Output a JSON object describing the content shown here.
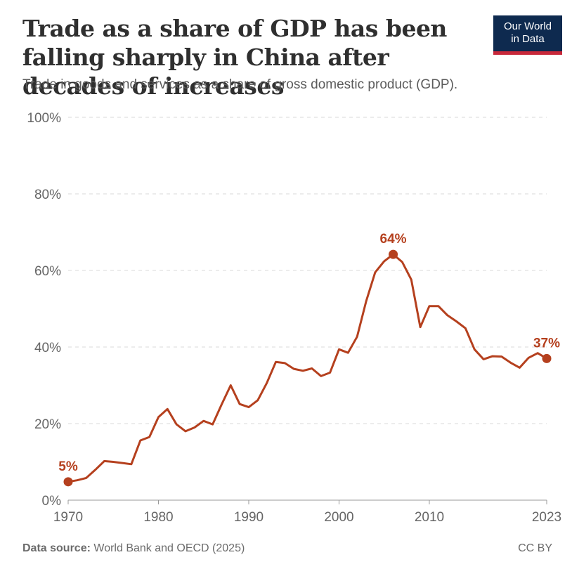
{
  "header": {
    "title": "Trade as a share of GDP has been falling sharply in China after decades of increases",
    "subtitle": "Trade in goods and services as a share of gross domestic product (GDP).",
    "logo_line1": "Our World",
    "logo_line2": "in Data"
  },
  "footer": {
    "source_label": "Data source:",
    "source_text": "World Bank and OECD (2025)",
    "license": "CC BY"
  },
  "colors": {
    "series": "#b5401e",
    "grid": "#d9d9d9",
    "logo_bg": "#0e2a4f",
    "logo_accent": "#c8283a"
  },
  "chart_data": {
    "type": "line",
    "title": "Trade as a share of GDP has been falling sharply in China after decades of increases",
    "subtitle": "Trade in goods and services as a share of gross domestic product (GDP).",
    "xlabel": "",
    "ylabel": "",
    "xlim": [
      1970,
      2023
    ],
    "ylim": [
      0,
      100
    ],
    "x_ticks": [
      1970,
      1980,
      1990,
      2000,
      2010,
      2023
    ],
    "y_ticks": [
      {
        "value": 0,
        "label": "0%"
      },
      {
        "value": 20,
        "label": "20%"
      },
      {
        "value": 40,
        "label": "40%"
      },
      {
        "value": 60,
        "label": "60%"
      },
      {
        "value": 80,
        "label": "80%"
      },
      {
        "value": 100,
        "label": "100%"
      }
    ],
    "series": [
      {
        "name": "China",
        "x": [
          1970,
          1971,
          1972,
          1973,
          1974,
          1975,
          1976,
          1977,
          1978,
          1979,
          1980,
          1981,
          1982,
          1983,
          1984,
          1985,
          1986,
          1987,
          1988,
          1989,
          1990,
          1991,
          1992,
          1993,
          1994,
          1995,
          1996,
          1997,
          1998,
          1999,
          2000,
          2001,
          2002,
          2003,
          2004,
          2005,
          2006,
          2007,
          2008,
          2009,
          2010,
          2011,
          2012,
          2013,
          2014,
          2015,
          2016,
          2017,
          2018,
          2019,
          2020,
          2021,
          2022,
          2023
        ],
        "values": [
          4.8,
          5.2,
          5.8,
          7.9,
          10.2,
          10.0,
          9.7,
          9.4,
          15.6,
          16.5,
          21.7,
          23.8,
          19.8,
          18.0,
          19.0,
          20.7,
          19.8,
          25.0,
          30.0,
          25.1,
          24.3,
          26.1,
          30.6,
          36.1,
          35.8,
          34.3,
          33.8,
          34.4,
          32.4,
          33.3,
          39.4,
          38.5,
          42.7,
          51.9,
          59.5,
          62.4,
          64.2,
          62.2,
          57.6,
          45.2,
          50.7,
          50.7,
          48.3,
          46.7,
          44.9,
          39.4,
          36.8,
          37.6,
          37.5,
          35.9,
          34.6,
          37.2,
          38.4,
          37.0
        ]
      }
    ],
    "annotations": [
      {
        "year": 1970,
        "value": 4.8,
        "label": "5%"
      },
      {
        "year": 2006,
        "value": 64.2,
        "label": "64%"
      },
      {
        "year": 2023,
        "value": 37.0,
        "label": "37%"
      }
    ]
  }
}
